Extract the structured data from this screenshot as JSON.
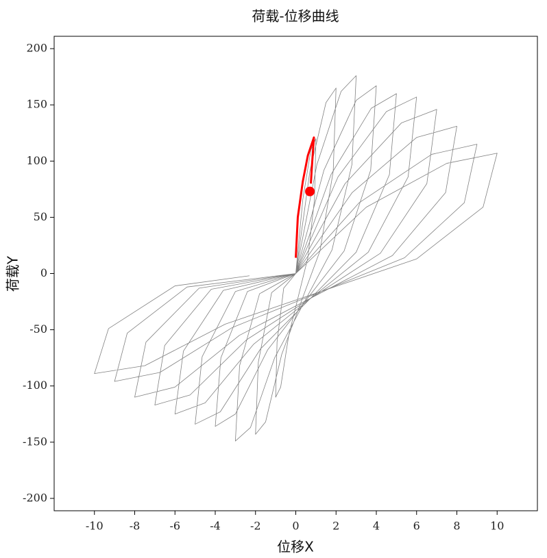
{
  "chart_data": {
    "type": "line",
    "title": "荷载-位移曲线",
    "xlabel": "位移X",
    "ylabel": "荷载Y",
    "xlim": [
      -12,
      12
    ],
    "ylim": [
      -211,
      211
    ],
    "xticks": [
      -10,
      -8,
      -6,
      -4,
      -2,
      0,
      2,
      4,
      6,
      8,
      10
    ],
    "yticks": [
      -200,
      -150,
      -100,
      -50,
      0,
      50,
      100,
      150,
      200
    ],
    "series": [
      {
        "color": "#808080",
        "width": 0.8,
        "x": [
          0,
          0.35,
          0.75,
          1,
          0.93,
          0.6,
          -0.35,
          -0.75,
          -1,
          -0.93,
          -0.6,
          0,
          0.7,
          1.5,
          2,
          1.86,
          1.2,
          -0.7,
          -1.5,
          -2,
          -1.86,
          -1.2,
          0,
          1.05,
          2.25,
          3,
          2.79,
          1.8,
          -1.05,
          -2.25,
          -3,
          -2.79,
          -1.8,
          0,
          1.4,
          3,
          4,
          3.72,
          2.4,
          -1.4,
          -3,
          -4,
          -3.72,
          -2.4,
          0,
          1.75,
          3.75,
          5,
          4.65,
          3,
          -1.75,
          -3.75,
          -5,
          -4.65,
          -3,
          0,
          2.1,
          4.5,
          6,
          5.58,
          3.6,
          -2.1,
          -4.5,
          -6,
          -5.58,
          -3.6,
          0,
          2.45,
          5.25,
          7,
          6.51,
          4.2,
          -2.45,
          -5.25,
          -7,
          -6.51,
          -4.2,
          0,
          2.8,
          6,
          8,
          7.44,
          4.8,
          -2.8,
          -6,
          -8,
          -7.44,
          -4.8,
          0,
          3.15,
          6.75,
          9,
          8.37,
          5.4,
          -3.15,
          -6.75,
          -9,
          -8.37,
          -5.4,
          0,
          3.5,
          7.5,
          10,
          9.3,
          6,
          -3.5,
          -7.5,
          -10,
          -9.3,
          -6,
          -2.3
        ],
        "values": [
          0,
          66,
          110,
          120,
          66,
          14,
          -55,
          -101,
          -110,
          -61,
          -13,
          0,
          91,
          152,
          165,
          91,
          20,
          -72,
          -132,
          -143,
          -79,
          -17,
          0,
          97,
          162,
          176,
          97,
          21,
          -75,
          -137,
          -149,
          -82,
          -18,
          0,
          92,
          154,
          167,
          92,
          20,
          -68,
          -125,
          -136,
          -75,
          -16,
          0,
          88,
          147,
          160,
          88,
          19,
          -67,
          -123,
          -134,
          -74,
          -16,
          0,
          86,
          144,
          157,
          86,
          19,
          -63,
          -115,
          -125,
          -69,
          -15,
          0,
          80,
          134,
          146,
          80,
          18,
          -59,
          -108,
          -117,
          -64,
          -14,
          0,
          72,
          121,
          131,
          72,
          16,
          -55,
          -101,
          -110,
          -61,
          -13,
          0,
          63,
          106,
          115,
          63,
          14,
          -48,
          -88,
          -96,
          -53,
          -12,
          0,
          59,
          98,
          107,
          59,
          13,
          -45,
          -82,
          -89,
          -49,
          -11,
          -2
        ]
      },
      {
        "color": "#ff0000",
        "width": 3,
        "x": [
          0,
          0.1,
          0.35,
          0.6,
          0.9,
          0.8,
          0.75
        ],
        "values": [
          14,
          50,
          82,
          105,
          121,
          95,
          80
        ]
      }
    ],
    "marker": {
      "x": 0.7,
      "y": 73,
      "color": "#ff0000"
    }
  }
}
